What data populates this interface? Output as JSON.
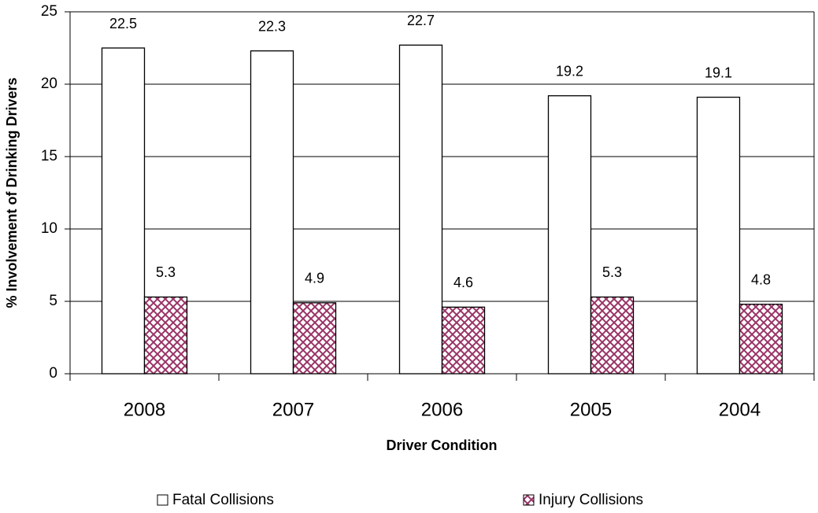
{
  "chart_data": {
    "type": "bar",
    "x_label": "Driver Condition",
    "y_label": "% Involvement of Drinking Drivers",
    "categories": [
      "2008",
      "2007",
      "2006",
      "2005",
      "2004"
    ],
    "series": [
      {
        "name": "Fatal Collisions",
        "color": "#ffffff",
        "values": [
          22.5,
          22.3,
          22.7,
          19.2,
          19.1
        ]
      },
      {
        "name": "Injury Collisions",
        "color": "#993366",
        "values": [
          5.3,
          4.9,
          4.6,
          5.3,
          4.8
        ]
      }
    ],
    "ylim": [
      0,
      25
    ],
    "yticks": [
      0,
      5,
      10,
      15,
      20,
      25
    ],
    "grid": true,
    "legend": "bottom"
  }
}
